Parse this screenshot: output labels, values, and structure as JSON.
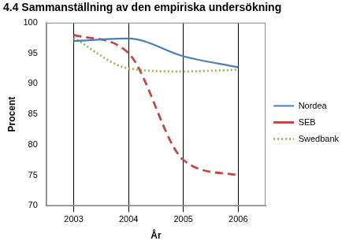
{
  "chart_data": {
    "type": "line",
    "title": "4.4 Sammanställning av den empiriska undersökning",
    "x_label": "År",
    "y_label": "Procent",
    "categories": [
      "2003",
      "2004",
      "2005",
      "2006"
    ],
    "series": [
      {
        "name": "Nordea",
        "color": "#4a7ebb",
        "line_style": "solid",
        "values": [
          97,
          97.4,
          94.5,
          92.7
        ]
      },
      {
        "name": "SEB",
        "color": "#be4b48",
        "line_style": "dashed",
        "values": [
          98,
          95,
          77.5,
          75
        ]
      },
      {
        "name": "Swedbank",
        "color": "#98b954",
        "line_style": "dotted",
        "values": [
          97.5,
          92.5,
          92,
          92.3
        ]
      }
    ],
    "ylim": [
      70,
      100
    ],
    "yticks": [
      70,
      75,
      80,
      85,
      90,
      95,
      100
    ],
    "grid": "x",
    "legend": "right"
  }
}
